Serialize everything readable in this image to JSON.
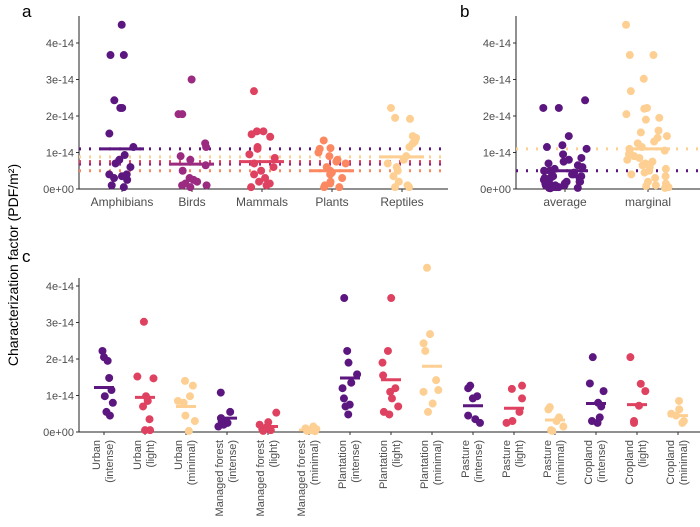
{
  "chart_data": [
    {
      "panel": "a",
      "type": "scatter",
      "title": "a",
      "ylabel": "Characterization factor (PDF/m²)",
      "ylim": [
        0,
        4.7e-14
      ],
      "yticks": [
        "0e+00",
        "1e-14",
        "2e-14",
        "3e-14",
        "4e-14"
      ],
      "ytick_values": [
        0,
        1e-14,
        2e-14,
        3e-14,
        4e-14
      ],
      "categories": [
        "Amphibians",
        "Birds",
        "Mammals",
        "Plants",
        "Reptiles"
      ],
      "colors": [
        "#5c167f",
        "#9b2b80",
        "#df4260",
        "#fb8861",
        "#fecf92"
      ],
      "units": "1e-14",
      "points": [
        [
          4.5,
          3.67,
          3.67,
          2.43,
          2.22,
          2.22,
          1.52,
          1.15,
          0.93,
          0.8,
          0.7,
          0.6,
          0.4,
          0.4,
          0.35,
          0.3,
          0.25,
          0.1,
          0.05
        ],
        [
          3.0,
          2.05,
          2.05,
          1.25,
          1.15,
          0.9,
          0.8,
          0.65,
          0.5,
          0.3,
          0.25,
          0.2,
          0.15,
          0.1,
          0.1,
          0.05
        ],
        [
          2.68,
          1.58,
          1.58,
          1.5,
          1.43,
          1.15,
          1.1,
          0.95,
          0.85,
          0.7,
          0.6,
          0.5,
          0.4,
          0.3,
          0.2,
          0.15,
          0.1,
          0.05
        ],
        [
          1.33,
          1.12,
          1.1,
          1.0,
          0.9,
          0.8,
          0.75,
          0.7,
          0.6,
          0.5,
          0.45,
          0.4,
          0.3,
          0.2,
          0.15,
          0.1,
          0.05,
          0.05
        ],
        [
          2.22,
          1.95,
          1.92,
          1.45,
          1.4,
          1.3,
          1.25,
          1.15,
          0.9,
          0.8,
          0.7,
          0.6,
          0.5,
          0.35,
          0.2,
          0.1,
          0.05,
          0.05
        ]
      ],
      "means": [
        1.1,
        0.68,
        0.75,
        0.5,
        0.88
      ]
    },
    {
      "panel": "b",
      "type": "scatter",
      "title": "b",
      "ylim": [
        0,
        4.7e-14
      ],
      "yticks": [
        "0e+00",
        "1e-14",
        "2e-14",
        "3e-14",
        "4e-14"
      ],
      "ytick_values": [
        0,
        1e-14,
        2e-14,
        3e-14,
        4e-14
      ],
      "categories": [
        "average",
        "marginal"
      ],
      "colors": [
        "#5c167f",
        "#fecf92"
      ],
      "units": "1e-14",
      "points": [
        [
          2.43,
          2.22,
          2.22,
          1.45,
          1.2,
          1.15,
          1.1,
          0.95,
          0.85,
          0.8,
          0.75,
          0.7,
          0.65,
          0.6,
          0.55,
          0.5,
          0.5,
          0.45,
          0.4,
          0.4,
          0.35,
          0.35,
          0.3,
          0.3,
          0.3,
          0.25,
          0.25,
          0.2,
          0.2,
          0.2,
          0.15,
          0.15,
          0.15,
          0.1,
          0.1,
          0.1,
          0.05,
          0.05,
          0.05,
          0.03,
          0.03,
          0.02
        ],
        [
          4.5,
          3.67,
          3.67,
          3.02,
          2.68,
          2.22,
          2.2,
          2.05,
          1.95,
          1.9,
          1.6,
          1.55,
          1.45,
          1.4,
          1.3,
          1.25,
          1.15,
          1.1,
          1.05,
          1.0,
          0.95,
          0.9,
          0.85,
          0.8,
          0.75,
          0.7,
          0.65,
          0.6,
          0.55,
          0.5,
          0.45,
          0.4,
          0.35,
          0.3,
          0.2,
          0.15,
          0.1,
          0.08,
          0.05,
          0.03
        ]
      ],
      "means": [
        0.5,
        1.1
      ]
    },
    {
      "panel": "c",
      "type": "scatter",
      "title": "c",
      "ylim": [
        0,
        4.7e-14
      ],
      "yticks": [
        "0e+00",
        "1e-14",
        "2e-14",
        "3e-14",
        "4e-14"
      ],
      "ytick_values": [
        0,
        1e-14,
        2e-14,
        3e-14,
        4e-14
      ],
      "categories": [
        [
          "Urban",
          "(intense)"
        ],
        [
          "Urban",
          "(light)"
        ],
        [
          "Urban",
          "(minimal)"
        ],
        [
          "Managed forest",
          "(intense)"
        ],
        [
          "Managed forest",
          "(light)"
        ],
        [
          "Managed forest",
          "(minimal)"
        ],
        [
          "Plantation",
          "(intense)"
        ],
        [
          "Plantation",
          "(light)"
        ],
        [
          "Plantation",
          "(minimal)"
        ],
        [
          "Pasture",
          "(intense)"
        ],
        [
          "Pasture",
          "(light)"
        ],
        [
          "Pasture",
          "(minimal)"
        ],
        [
          "Cropland",
          "(intense)"
        ],
        [
          "Cropland",
          "(light)"
        ],
        [
          "Cropland",
          "(minimal)"
        ]
      ],
      "colors": [
        "#5c167f",
        "#df4260",
        "#fecf92"
      ],
      "units": "1e-14",
      "points": [
        [
          2.22,
          2.05,
          1.95,
          1.48,
          1.15,
          0.98,
          0.8,
          0.55,
          0.45
        ],
        [
          3.02,
          1.52,
          1.47,
          0.98,
          0.85,
          0.7,
          0.35,
          0.05,
          0.05
        ],
        [
          1.4,
          1.27,
          0.98,
          0.85,
          0.8,
          0.45,
          0.3,
          0.03
        ],
        [
          1.08,
          0.55,
          0.38,
          0.3,
          0.25,
          0.2,
          0.15
        ],
        [
          0.53,
          0.27,
          0.2,
          0.12,
          0.08,
          0.05,
          0.03
        ],
        [
          0.15,
          0.1,
          0.08,
          0.05,
          0.03,
          0.02
        ],
        [
          3.67,
          2.22,
          1.9,
          1.58,
          1.35,
          1.2,
          0.92,
          0.75,
          0.7,
          0.48
        ],
        [
          3.67,
          2.22,
          1.9,
          1.55,
          1.2,
          1.1,
          0.92,
          0.7,
          0.55,
          0.48
        ],
        [
          4.5,
          2.68,
          2.43,
          2.22,
          1.42,
          1.15,
          1.1,
          0.78,
          0.55
        ],
        [
          1.27,
          1.2,
          0.98,
          0.92,
          0.45,
          0.35,
          0.25
        ],
        [
          1.27,
          1.18,
          0.92,
          0.55,
          0.3,
          0.25
        ],
        [
          0.68,
          0.62,
          0.4,
          0.3,
          0.15,
          0.05,
          0.03
        ],
        [
          2.05,
          1.33,
          1.12,
          0.8,
          0.7,
          0.4,
          0.3,
          0.25
        ],
        [
          2.05,
          1.32,
          1.12,
          0.72,
          0.3,
          0.25
        ],
        [
          0.85,
          0.62,
          0.5,
          0.45,
          0.3,
          0.25
        ]
      ],
      "means": [
        1.22,
        0.95,
        0.7,
        0.38,
        0.15,
        0.05,
        1.48,
        1.43,
        1.8,
        0.72,
        0.65,
        0.33,
        0.78,
        0.75,
        0.45
      ]
    }
  ]
}
